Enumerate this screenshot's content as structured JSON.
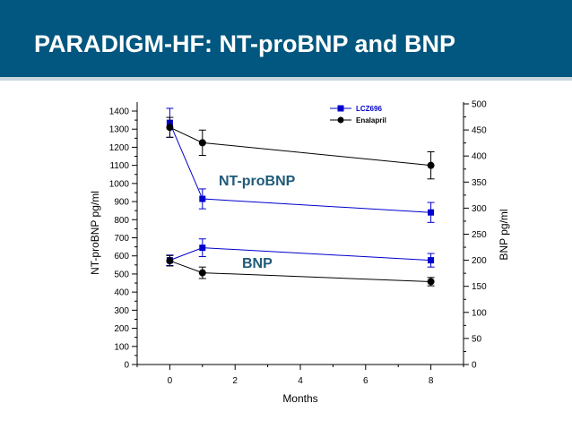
{
  "slide": {
    "title": "PARADIGM-HF: NT-proBNP and BNP",
    "colors": {
      "header_bg": "#01577f",
      "lcz_series": "#0000cc",
      "enalapril_series": "#000000",
      "annotation": "#1f5a78"
    }
  },
  "chart_data": {
    "type": "line",
    "xlabel": "Months",
    "ylabel_left": "NT-proBNP pg/ml",
    "ylabel_right": "BNP pg/ml",
    "x_ticks": [
      0,
      2,
      4,
      6,
      8
    ],
    "xlim": [
      -1,
      9
    ],
    "ylim_left": [
      0,
      1450
    ],
    "y_ticks_left": [
      0,
      100,
      200,
      300,
      400,
      500,
      600,
      700,
      800,
      900,
      1000,
      1100,
      1200,
      1300,
      1400
    ],
    "ylim_right": [
      0,
      500
    ],
    "y_ticks_right": [
      0,
      50,
      100,
      150,
      200,
      250,
      300,
      350,
      400,
      450,
      500
    ],
    "annotations": {
      "nt_probnp": "NT-proBNP",
      "bnp": "BNP"
    },
    "legend": {
      "placement": "top-right",
      "entries": [
        "LCZ696",
        "Enalapril"
      ]
    },
    "series": [
      {
        "name": "LCZ696",
        "measure": "NT-proBNP",
        "axis": "left",
        "marker": "square",
        "color": "#0000cc",
        "x": [
          0,
          1,
          8
        ],
        "y": [
          1335,
          915,
          840
        ],
        "err": [
          80,
          55,
          55
        ]
      },
      {
        "name": "Enalapril",
        "measure": "NT-proBNP",
        "axis": "left",
        "marker": "circle",
        "color": "#000000",
        "x": [
          0,
          1,
          8
        ],
        "y": [
          1310,
          1225,
          1100
        ],
        "err": [
          55,
          70,
          75
        ]
      },
      {
        "name": "LCZ696",
        "measure": "BNP",
        "axis": "right",
        "marker": "square",
        "color": "#0000cc",
        "x": [
          0,
          1,
          8
        ],
        "y": [
          200,
          224,
          200
        ],
        "err": [
          10,
          17,
          13
        ]
      },
      {
        "name": "Enalapril",
        "measure": "BNP",
        "axis": "right",
        "marker": "circle",
        "color": "#000000",
        "x": [
          0,
          1,
          8
        ],
        "y": [
          199,
          176,
          159
        ],
        "err": [
          10,
          11,
          8
        ]
      }
    ]
  }
}
